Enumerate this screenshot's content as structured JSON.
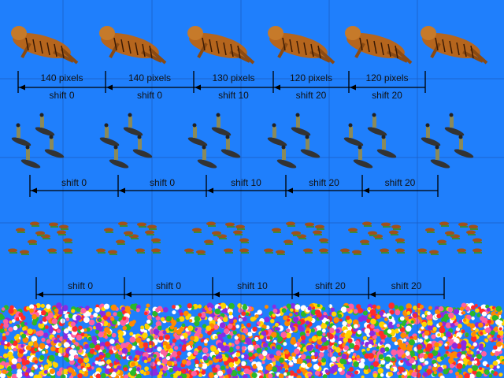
{
  "rows": [
    {
      "sprite": "tiger",
      "top_labels": [
        "140 pixels",
        "140 pixels",
        "130 pixels",
        "120 pixels",
        "120 pixels"
      ],
      "bottom_labels": [
        "shift 0",
        "shift 0",
        "shift 10",
        "shift 20",
        "shift 20"
      ]
    },
    {
      "sprite": "shark-with-rider",
      "top_labels": [
        "shift 0",
        "shift 0",
        "shift 10",
        "shift 20",
        "shift 20"
      ]
    },
    {
      "sprite": "small-creature",
      "top_labels": [
        "shift 0",
        "shift 0",
        "shift 10",
        "shift 20",
        "shift 20"
      ]
    }
  ],
  "colors": {
    "background": "#1f7ffc",
    "grid": "#1a5cc0",
    "arrow": "#000000"
  },
  "candy_colors": [
    "#ff2a2a",
    "#ffd400",
    "#2ab82a",
    "#ff8a00",
    "#ffffff",
    "#ff5fa0",
    "#8a2be2"
  ]
}
